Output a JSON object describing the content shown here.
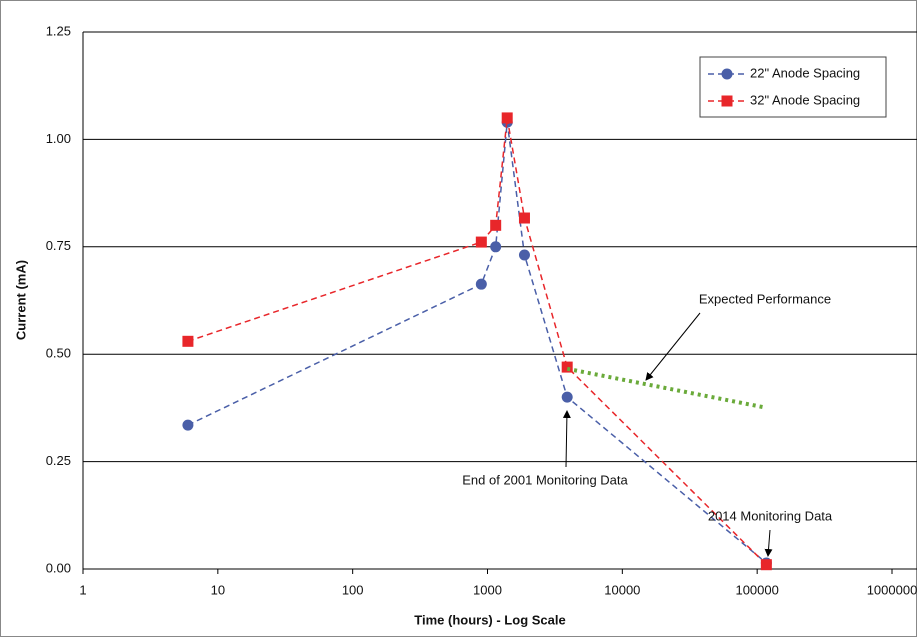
{
  "chart_data": {
    "type": "line",
    "xlabel": "Time (hours) - Log Scale",
    "ylabel": "Current (mA)",
    "xscale": "log",
    "xlim": [
      1,
      1000000
    ],
    "xticks": [
      1,
      10,
      100,
      1000,
      10000,
      100000,
      1000000
    ],
    "ylim": [
      0,
      1.25
    ],
    "yticks": [
      {
        "value": 0,
        "label": "0.00"
      },
      {
        "value": 0.25,
        "label": "0.25"
      },
      {
        "value": 0.5,
        "label": "0.50"
      },
      {
        "value": 0.75,
        "label": "0.75"
      },
      {
        "value": 1,
        "label": "1.00"
      },
      1.25
    ],
    "grid": true,
    "legend": "upper right",
    "x": [
      6,
      900,
      1150,
      1400,
      1880,
      3900,
      117000
    ],
    "series": [
      {
        "name": "22\" Anode Spacing",
        "color": "#4a5fa8",
        "marker": "circle",
        "values": [
          0.335,
          0.663,
          0.75,
          1.04,
          0.731,
          0.4,
          0.014
        ]
      },
      {
        "name": "32\" Anode Spacing",
        "color": "#e8262a",
        "marker": "square",
        "values": [
          0.53,
          0.761,
          0.8,
          1.05,
          0.817,
          0.47,
          0.01
        ]
      }
    ],
    "trend": {
      "x": [
        3900,
        110000
      ],
      "values": [
        0.466,
        0.377
      ],
      "color": "#6aaa3a"
    },
    "annotations": [
      "Expected Performance",
      "End of 2001 Monitoring Data",
      "2014 Monitoring Data"
    ]
  }
}
